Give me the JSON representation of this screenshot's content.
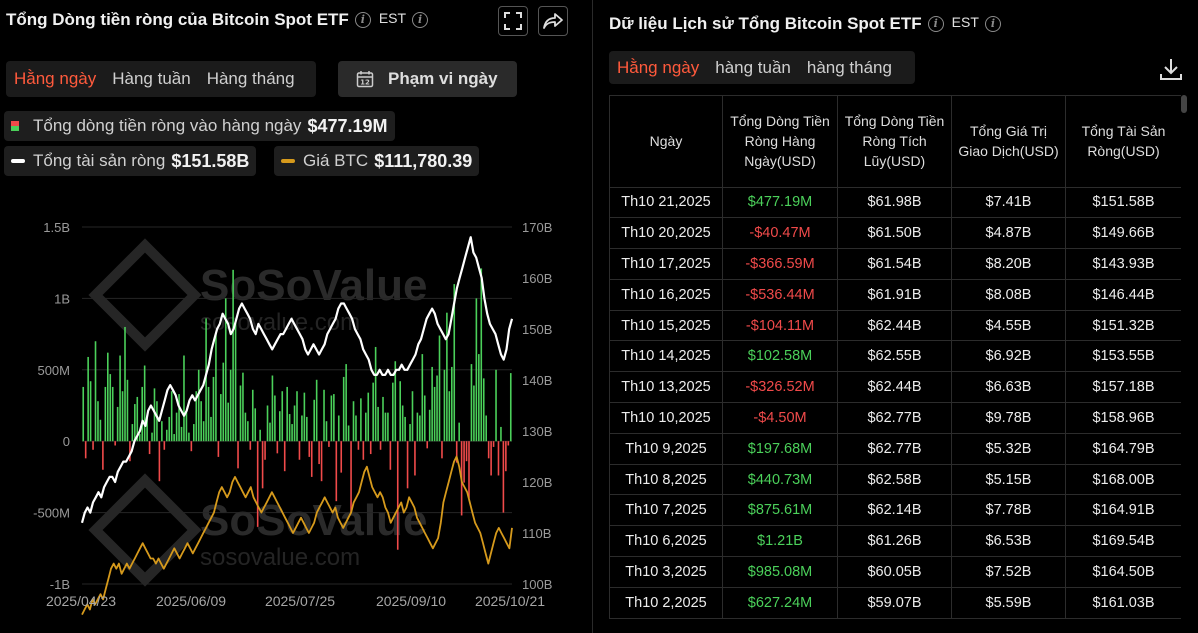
{
  "left_panel": {
    "title": "Tổng Dòng tiền ròng của Bitcoin Spot ETF",
    "timezone": "EST",
    "tabs": [
      "Hằng ngày",
      "Hàng tuần",
      "Hàng tháng"
    ],
    "date_range_label": "Phạm vi ngày",
    "legend": {
      "daily_label": "Tổng dòng tiền ròng vào hàng ngày",
      "daily_value": "$477.19M",
      "assets_label": "Tổng tài sản ròng",
      "assets_value": "$151.58B",
      "btc_label": "Giá BTC",
      "btc_value": "$111,780.39"
    },
    "watermark": "SoSoValue",
    "watermark_url": "sosovalue.com"
  },
  "colors": {
    "accent": "#ff5a3c",
    "positive": "#4bd05a",
    "negative": "#f04a4a",
    "btc_line": "#d69a1c",
    "assets_line": "#ffffff"
  },
  "chart_data": {
    "type": "bar",
    "title": "Tổng Dòng tiền ròng của Bitcoin Spot ETF",
    "x_ticks": [
      "2025/04/23",
      "2025/06/09",
      "2025/07/25",
      "2025/09/10",
      "2025/10/21"
    ],
    "y_left_ticks": [
      "1.5B",
      "1B",
      "500M",
      "0",
      "-500M",
      "-1B"
    ],
    "y_right_ticks": [
      "170B",
      "160B",
      "150B",
      "140B",
      "130B",
      "120B",
      "110B",
      "100B"
    ],
    "y_left_range": [
      -1000,
      1500
    ],
    "y_right_range": [
      100,
      170
    ],
    "series": [
      {
        "name": "Tổng dòng tiền ròng vào hàng ngày (USD M)",
        "type": "bar",
        "values": [
          380,
          -120,
          590,
          420,
          -60,
          700,
          280,
          150,
          -200,
          380,
          620,
          470,
          380,
          -30,
          240,
          600,
          350,
          800,
          430,
          -140,
          120,
          260,
          310,
          50,
          380,
          530,
          180,
          -90,
          60,
          370,
          280,
          -280,
          140,
          -60,
          80,
          170,
          350,
          50,
          200,
          330,
          100,
          600,
          210,
          60,
          -70,
          120,
          350,
          500,
          280,
          140,
          860,
          380,
          170,
          450,
          760,
          -110,
          330,
          550,
          1000,
          270,
          500,
          1200,
          830,
          -190,
          390,
          480,
          200,
          140,
          -60,
          360,
          230,
          -600,
          80,
          -330,
          -130,
          250,
          130,
          460,
          320,
          -85,
          210,
          350,
          -210,
          380,
          190,
          120,
          250,
          350,
          -130,
          180,
          340,
          170,
          -110,
          -250,
          290,
          430,
          -160,
          -280,
          360,
          140,
          -40,
          320,
          330,
          -420,
          180,
          -220,
          450,
          540,
          110,
          -500,
          280,
          180,
          -60,
          300,
          -130,
          200,
          340,
          -90,
          410,
          660,
          240,
          -60,
          310,
          200,
          200,
          -200,
          410,
          560,
          -760,
          420,
          250,
          170,
          -330,
          120,
          350,
          -240,
          200,
          180,
          610,
          320,
          -50,
          220,
          520,
          380,
          460,
          740,
          -120,
          500,
          900,
          350,
          520,
          1100,
          -150,
          130,
          -520,
          -290,
          -140,
          -400,
          540,
          390,
          1000,
          610,
          1210,
          440,
          180,
          -120,
          -240,
          -40,
          500,
          -240,
          100,
          -500,
          -210,
          -30,
          477
        ]
      },
      {
        "name": "Tổng tài sản ròng (USD B)",
        "type": "line",
        "values": [
          112,
          114,
          115,
          114,
          116,
          117,
          118,
          117,
          119,
          120,
          121,
          121,
          120,
          122,
          123,
          124,
          124,
          125,
          126,
          128,
          129,
          130,
          132,
          131,
          134,
          135,
          134,
          133,
          132,
          134,
          136,
          138,
          139,
          138,
          137,
          135,
          134,
          133,
          134,
          136,
          137,
          136,
          137,
          138,
          139,
          141,
          143,
          146,
          148,
          150,
          151,
          153,
          152,
          151,
          149,
          150,
          152,
          154,
          155,
          154,
          153,
          152,
          150,
          149,
          151,
          150,
          149,
          148,
          147,
          146,
          147,
          148,
          149,
          149,
          150,
          151,
          152,
          151,
          150,
          149,
          148,
          146,
          145,
          146,
          147,
          146,
          145,
          146,
          147,
          149,
          150,
          151,
          152,
          154,
          155,
          155,
          154,
          153,
          152,
          150,
          149,
          148,
          146,
          145,
          144,
          142,
          141,
          141,
          142,
          141,
          141,
          142,
          141,
          141,
          142,
          142,
          143,
          142,
          142,
          143,
          144,
          145,
          147,
          148,
          150,
          152,
          153,
          154,
          153,
          151,
          150,
          149,
          148,
          149,
          152,
          155,
          158,
          160,
          162,
          164,
          166,
          168,
          165,
          164,
          162,
          160,
          156,
          153,
          151,
          150,
          149,
          147,
          145,
          144,
          146,
          150,
          152
        ],
        "line_only_points": true
      },
      {
        "name": "Giá BTC (USD K)",
        "type": "line",
        "values": [
          94,
          95,
          96,
          95,
          97,
          96,
          97,
          98,
          97,
          99,
          101,
          103,
          104,
          103,
          104,
          102,
          103,
          104,
          103,
          104,
          105,
          106,
          107,
          108,
          107,
          106,
          105,
          105,
          104,
          105,
          104,
          103,
          104,
          105,
          106,
          107,
          106,
          105,
          106,
          107,
          108,
          107,
          106,
          107,
          108,
          109,
          110,
          111,
          112,
          113,
          114,
          116,
          118,
          119,
          118,
          117,
          118,
          120,
          121,
          120,
          119,
          118,
          117,
          118,
          119,
          117,
          116,
          115,
          114,
          115,
          116,
          117,
          118,
          117,
          116,
          115,
          114,
          113,
          112,
          111,
          110,
          111,
          112,
          113,
          112,
          111,
          110,
          111,
          112,
          114,
          115,
          116,
          117,
          116,
          115,
          114,
          115,
          113,
          112,
          111,
          112,
          113,
          114,
          116,
          117,
          118,
          120,
          122,
          123,
          121,
          119,
          118,
          117,
          118,
          117,
          115,
          114,
          112,
          113,
          114,
          115,
          116,
          114,
          115,
          117,
          116,
          115,
          113,
          112,
          111,
          110,
          109,
          108,
          107,
          108,
          109,
          112,
          116,
          118,
          120,
          122,
          124,
          125,
          123,
          120,
          119,
          118,
          116,
          114,
          112,
          111,
          110,
          108,
          106,
          104,
          106,
          108,
          110,
          111,
          110,
          109,
          108,
          107,
          111
        ]
      }
    ],
    "legend_position": "top-left",
    "grid": true
  },
  "right_panel": {
    "title": "Dữ liệu Lịch sử Tổng Bitcoin Spot ETF",
    "timezone": "EST",
    "tabs": [
      "Hằng ngày",
      "hàng tuần",
      "hàng tháng"
    ],
    "columns": [
      "Ngày",
      "Tổng Dòng Tiền Ròng Hàng Ngày(USD)",
      "Tổng Dòng Tiền Ròng Tích Lũy(USD)",
      "Tổng Giá Trị Giao Dịch(USD)",
      "Tổng Tài Sản Ròng(USD)"
    ],
    "rows": [
      [
        "Th10 21,2025",
        "$477.19M",
        "$61.98B",
        "$7.41B",
        "$151.58B"
      ],
      [
        "Th10 20,2025",
        "-$40.47M",
        "$61.50B",
        "$4.87B",
        "$149.66B"
      ],
      [
        "Th10 17,2025",
        "-$366.59M",
        "$61.54B",
        "$8.20B",
        "$143.93B"
      ],
      [
        "Th10 16,2025",
        "-$536.44M",
        "$61.91B",
        "$8.08B",
        "$146.44B"
      ],
      [
        "Th10 15,2025",
        "-$104.11M",
        "$62.44B",
        "$4.55B",
        "$151.32B"
      ],
      [
        "Th10 14,2025",
        "$102.58M",
        "$62.55B",
        "$6.92B",
        "$153.55B"
      ],
      [
        "Th10 13,2025",
        "-$326.52M",
        "$62.44B",
        "$6.63B",
        "$157.18B"
      ],
      [
        "Th10 10,2025",
        "-$4.50M",
        "$62.77B",
        "$9.78B",
        "$158.96B"
      ],
      [
        "Th10 9,2025",
        "$197.68M",
        "$62.77B",
        "$5.32B",
        "$164.79B"
      ],
      [
        "Th10 8,2025",
        "$440.73M",
        "$62.58B",
        "$5.15B",
        "$168.00B"
      ],
      [
        "Th10 7,2025",
        "$875.61M",
        "$62.14B",
        "$7.78B",
        "$164.91B"
      ],
      [
        "Th10 6,2025",
        "$1.21B",
        "$61.26B",
        "$6.53B",
        "$169.54B"
      ],
      [
        "Th10 3,2025",
        "$985.08M",
        "$60.05B",
        "$7.52B",
        "$164.50B"
      ],
      [
        "Th10 2,2025",
        "$627.24M",
        "$59.07B",
        "$5.59B",
        "$161.03B"
      ]
    ]
  }
}
